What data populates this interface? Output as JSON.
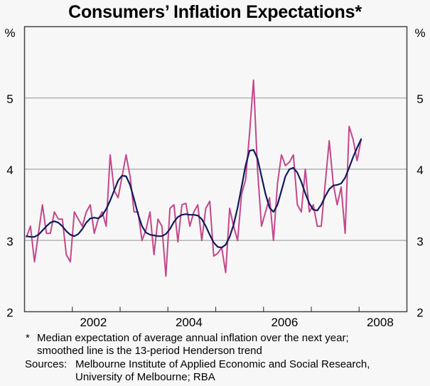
{
  "chart_data": {
    "type": "line",
    "title": "Consumers’ Inflation Expectations*",
    "ylabel_left": "%",
    "ylabel_right": "%",
    "xlabel": "",
    "ylim": [
      2,
      6
    ],
    "xlim": [
      2001.0,
      2009.0
    ],
    "y_ticks": [
      2,
      3,
      4,
      5
    ],
    "x_tick_labels": [
      "2002",
      "2004",
      "2006",
      "2008"
    ],
    "x_tick_label_positions": [
      2002.5,
      2004.5,
      2006.5,
      2008.5
    ],
    "x_minor_ticks": [
      2002,
      2003,
      2004,
      2005,
      2006,
      2007,
      2008
    ],
    "grid": "horizontal",
    "x_start": 2001.0,
    "x_step_months": 1,
    "series": [
      {
        "name": "Median expectation",
        "color": "#C4478A",
        "values": [
          3.05,
          3.2,
          2.7,
          3.1,
          3.5,
          3.1,
          3.1,
          3.4,
          3.3,
          3.3,
          2.8,
          2.7,
          3.4,
          3.3,
          3.2,
          3.4,
          3.5,
          3.1,
          3.3,
          3.4,
          3.2,
          4.2,
          3.7,
          3.6,
          3.9,
          4.2,
          3.9,
          3.4,
          3.4,
          3.0,
          3.15,
          3.4,
          2.8,
          3.3,
          3.2,
          2.5,
          3.45,
          3.5,
          2.98,
          3.5,
          3.52,
          3.2,
          3.4,
          3.5,
          3.0,
          3.45,
          3.55,
          2.78,
          2.82,
          2.9,
          2.55,
          3.45,
          3.2,
          3.0,
          3.65,
          3.85,
          4.5,
          5.25,
          4.0,
          3.2,
          3.4,
          3.6,
          3.0,
          3.8,
          4.2,
          4.05,
          4.1,
          4.2,
          3.5,
          3.4,
          4.0,
          3.4,
          3.5,
          3.2,
          3.2,
          3.8,
          4.4,
          3.8,
          3.5,
          3.75,
          3.1,
          4.6,
          4.42,
          4.12,
          4.42
        ]
      },
      {
        "name": "13-period Henderson trend",
        "color": "#0F1A5C",
        "values": [
          3.06,
          3.05,
          3.05,
          3.08,
          3.14,
          3.2,
          3.25,
          3.27,
          3.25,
          3.2,
          3.13,
          3.08,
          3.06,
          3.09,
          3.16,
          3.25,
          3.31,
          3.32,
          3.31,
          3.35,
          3.44,
          3.56,
          3.7,
          3.84,
          3.91,
          3.9,
          3.78,
          3.58,
          3.37,
          3.2,
          3.11,
          3.08,
          3.07,
          3.06,
          3.06,
          3.09,
          3.16,
          3.26,
          3.33,
          3.36,
          3.37,
          3.36,
          3.36,
          3.35,
          3.3,
          3.2,
          3.08,
          2.97,
          2.91,
          2.9,
          2.94,
          3.05,
          3.22,
          3.46,
          3.75,
          4.05,
          4.26,
          4.27,
          4.15,
          3.9,
          3.65,
          3.46,
          3.4,
          3.5,
          3.7,
          3.9,
          4.0,
          4.02,
          3.95,
          3.82,
          3.66,
          3.52,
          3.43,
          3.42,
          3.5,
          3.62,
          3.72,
          3.77,
          3.78,
          3.8,
          3.88,
          4.02,
          4.17,
          4.3,
          4.42
        ]
      }
    ]
  },
  "notes": {
    "star": "*",
    "footnote_line1": "Median expectation of average annual inflation over the next year;",
    "footnote_line2": "smoothed line is the 13-period Henderson trend",
    "sources_label": "Sources:",
    "sources_line1": "Melbourne Institute of Applied Economic and Social Research,",
    "sources_line2": "University of Melbourne; RBA"
  }
}
